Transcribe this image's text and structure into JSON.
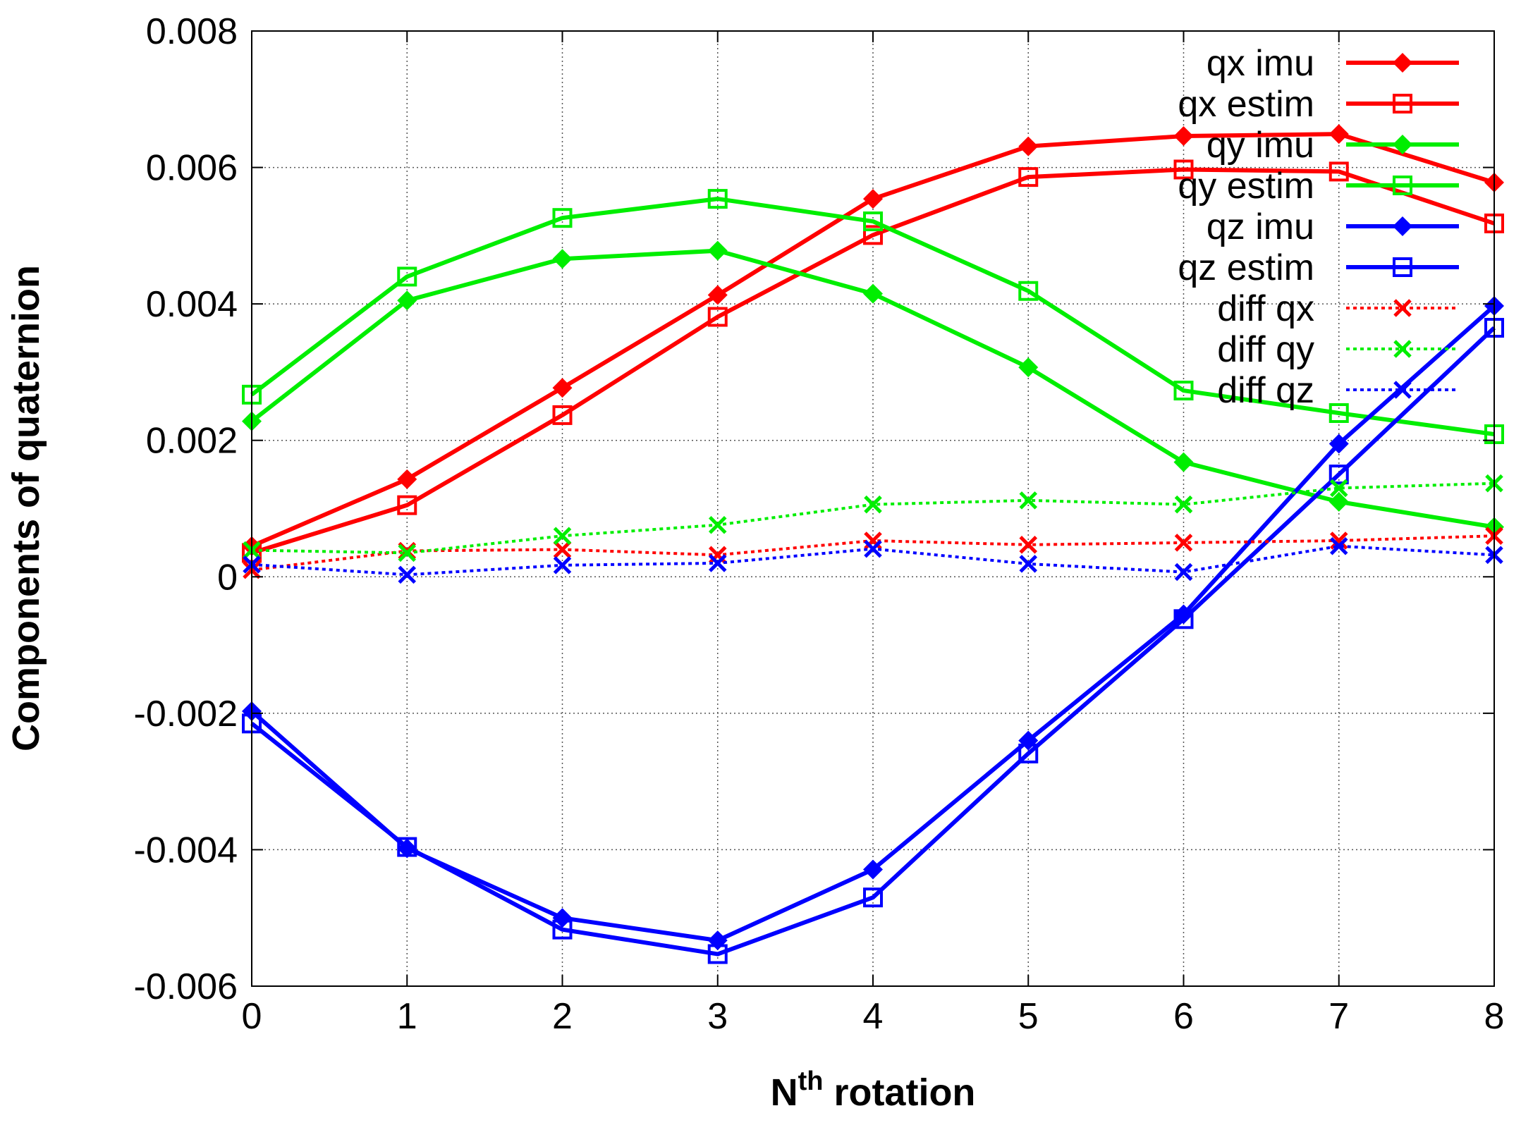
{
  "chart_data": {
    "type": "line",
    "title": "",
    "xlabel": "N",
    "xlabel_superscript": "th",
    "xlabel_suffix": " rotation",
    "ylabel": "Components of quaternion",
    "x": [
      0,
      1,
      2,
      3,
      4,
      5,
      6,
      7,
      8
    ],
    "xlim": [
      0,
      8
    ],
    "ylim": [
      -0.006,
      0.008
    ],
    "xticks": [
      "0",
      "1",
      "2",
      "3",
      "4",
      "5",
      "6",
      "7",
      "8"
    ],
    "yticks": [
      "-0.006",
      "-0.004",
      "-0.002",
      "0",
      "0.002",
      "0.004",
      "0.006",
      "0.008"
    ],
    "grid": true,
    "legend_position": "top-right",
    "series": [
      {
        "name": "qx imu",
        "color": "#ff0000",
        "marker": "diamond",
        "dash": "solid",
        "values": [
          0.00045,
          0.00143,
          0.00277,
          0.00413,
          0.00554,
          0.00631,
          0.00646,
          0.00649,
          0.00578
        ]
      },
      {
        "name": "qx estim",
        "color": "#ff0000",
        "marker": "square",
        "dash": "solid",
        "values": [
          0.00035,
          0.00105,
          0.00237,
          0.00381,
          0.00501,
          0.00586,
          0.00597,
          0.00594,
          0.00518
        ]
      },
      {
        "name": "qy imu",
        "color": "#00ee00",
        "marker": "diamond",
        "dash": "solid",
        "values": [
          0.00228,
          0.00405,
          0.00466,
          0.00478,
          0.00415,
          0.00307,
          0.00168,
          0.0011,
          0.00073
        ]
      },
      {
        "name": "qy estim",
        "color": "#00ee00",
        "marker": "square",
        "dash": "solid",
        "values": [
          0.00267,
          0.0044,
          0.00526,
          0.00554,
          0.00521,
          0.00419,
          0.00273,
          0.0024,
          0.00209
        ]
      },
      {
        "name": "qz imu",
        "color": "#0000ff",
        "marker": "diamond",
        "dash": "solid",
        "values": [
          -0.00197,
          -0.00398,
          -0.005,
          -0.00533,
          -0.00429,
          -0.0024,
          -0.00055,
          0.00195,
          0.00397
        ]
      },
      {
        "name": "qz estim",
        "color": "#0000ff",
        "marker": "square",
        "dash": "solid",
        "values": [
          -0.00215,
          -0.00396,
          -0.00517,
          -0.00553,
          -0.0047,
          -0.00259,
          -0.00062,
          0.0015,
          0.00365
        ]
      },
      {
        "name": "diff qx",
        "color": "#ff0000",
        "marker": "cross",
        "dash": "dotted",
        "values": [
          0.0001,
          0.00038,
          0.0004,
          0.00032,
          0.00053,
          0.00047,
          0.0005,
          0.00053,
          0.0006
        ]
      },
      {
        "name": "diff qy",
        "color": "#00ee00",
        "marker": "cross",
        "dash": "dotted",
        "values": [
          0.00039,
          0.00035,
          0.0006,
          0.00076,
          0.00106,
          0.00112,
          0.00106,
          0.0013,
          0.00137
        ]
      },
      {
        "name": "diff qz",
        "color": "#0000ff",
        "marker": "cross",
        "dash": "dotted",
        "values": [
          0.00018,
          3e-05,
          0.00017,
          0.0002,
          0.00041,
          0.00019,
          7e-05,
          0.00045,
          0.00032
        ]
      }
    ]
  }
}
